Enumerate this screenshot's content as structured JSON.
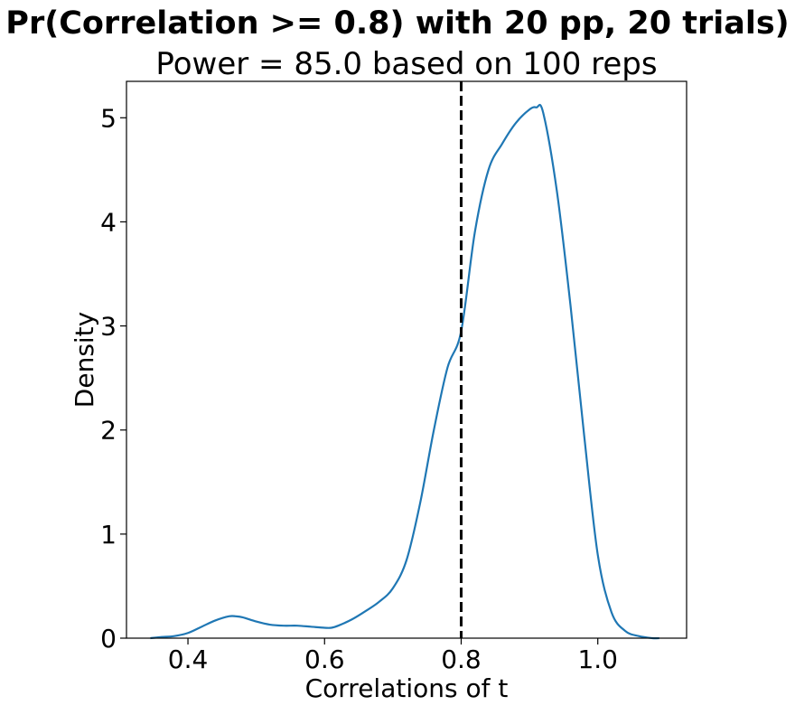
{
  "chart_data": {
    "type": "line",
    "title": "Pr(Correlation >= 0.8) with 20 pp, 20 trials)",
    "subtitle": "Power = 85.0 based on 100 reps",
    "xlabel": "Correlations of t",
    "ylabel": "Density",
    "xlim": [
      0.31,
      1.13
    ],
    "ylim": [
      0,
      5.35
    ],
    "xticks": [
      0.4,
      0.6,
      0.8,
      1.0
    ],
    "xtick_labels": [
      "0.4",
      "0.6",
      "0.8",
      "1.0"
    ],
    "yticks": [
      0,
      1,
      2,
      3,
      4,
      5
    ],
    "ytick_labels": [
      "0",
      "1",
      "2",
      "3",
      "4",
      "5"
    ],
    "grid": false,
    "threshold": {
      "x": 0.8,
      "style": "dashed",
      "color": "#000000"
    },
    "series": [
      {
        "color": "#1f77b4",
        "x": [
          0.345,
          0.36,
          0.38,
          0.4,
          0.42,
          0.44,
          0.46,
          0.47,
          0.48,
          0.5,
          0.52,
          0.54,
          0.56,
          0.58,
          0.6,
          0.61,
          0.62,
          0.64,
          0.66,
          0.68,
          0.7,
          0.72,
          0.74,
          0.76,
          0.78,
          0.8,
          0.82,
          0.84,
          0.86,
          0.88,
          0.9,
          0.91,
          0.92,
          0.94,
          0.96,
          0.98,
          1.0,
          1.02,
          1.04,
          1.06,
          1.08,
          1.09
        ],
        "y": [
          0.0,
          0.01,
          0.02,
          0.05,
          0.11,
          0.17,
          0.21,
          0.21,
          0.2,
          0.16,
          0.13,
          0.12,
          0.12,
          0.11,
          0.1,
          0.1,
          0.12,
          0.18,
          0.26,
          0.35,
          0.48,
          0.75,
          1.3,
          2.0,
          2.6,
          2.95,
          3.9,
          4.5,
          4.75,
          4.95,
          5.08,
          5.1,
          5.05,
          4.3,
          3.2,
          1.95,
          0.8,
          0.25,
          0.07,
          0.02,
          0.0,
          0.0
        ]
      }
    ]
  }
}
